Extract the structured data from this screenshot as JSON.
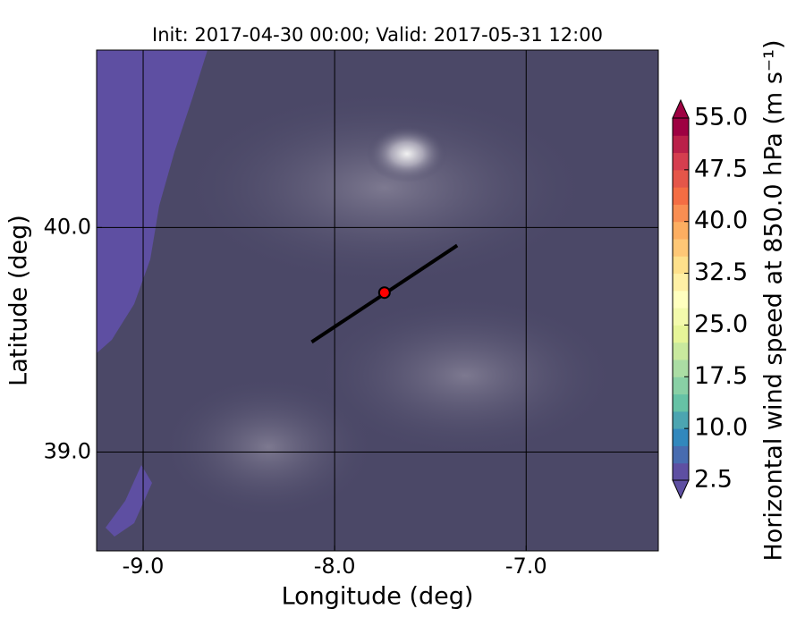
{
  "chart_data": {
    "type": "map",
    "title": "Init: 2017-04-30 00:00; Valid: 2017-05-31 12:00",
    "x_label": "Longitude (deg)",
    "y_label": "Latitude (deg)",
    "xlim": [
      -9.243,
      -6.31
    ],
    "ylim": [
      38.56,
      40.79
    ],
    "xticks": [
      {
        "value": -9,
        "label": "-9.0"
      },
      {
        "value": -8,
        "label": "-8.0"
      },
      {
        "value": -7,
        "label": "-7.0"
      }
    ],
    "yticks": [
      {
        "value": 39,
        "label": "39.0"
      },
      {
        "value": 40,
        "label": "40.0"
      }
    ],
    "grid": true,
    "section": {
      "lon": [
        -8.12,
        -7.36
      ],
      "lat": [
        39.49,
        39.92
      ],
      "color": "#000000"
    },
    "point": {
      "lon": -7.74,
      "lat": 39.71,
      "color": "#ff0000"
    },
    "colorbar": {
      "label": "Horizontal wind speed at 850.0 hPa (m s⁻¹)",
      "range": [
        2.5,
        55
      ],
      "ticks": [
        2.5,
        {
          "value": 10,
          "label": "10.0"
        },
        17.5,
        {
          "value": 25,
          "label": "25.0"
        },
        32.5,
        {
          "value": 40,
          "label": "40.0"
        },
        47.5,
        {
          "value": 55,
          "label": "55.0"
        }
      ],
      "colors": [
        "#5e4fa2",
        "#3288bd",
        "#66c2a5",
        "#abdda4",
        "#e6f598",
        "#ffffbf",
        "#fee08b",
        "#fdae61",
        "#f46d43",
        "#d53e4f",
        "#9e0142"
      ]
    }
  }
}
